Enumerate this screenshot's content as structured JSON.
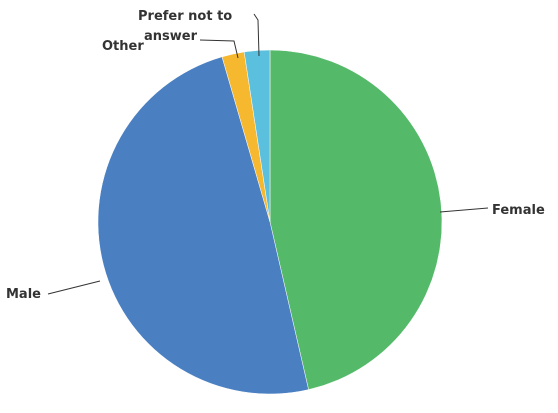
{
  "chart_data": {
    "type": "pie",
    "title": "",
    "slices": [
      {
        "label": "Female",
        "value": 46.4,
        "color": "#55b96a"
      },
      {
        "label": "Male",
        "value": 49.1,
        "color": "#4a7fc1"
      },
      {
        "label": "Other",
        "value": 2.1,
        "color": "#f5b82e"
      },
      {
        "label": "Prefer not to answer",
        "value": 2.4,
        "color": "#5bc0de"
      }
    ],
    "labels": {
      "female": "Female",
      "male": "Male",
      "other": "Other",
      "prefer_line1": "Prefer not to",
      "prefer_line2": "answer"
    }
  }
}
